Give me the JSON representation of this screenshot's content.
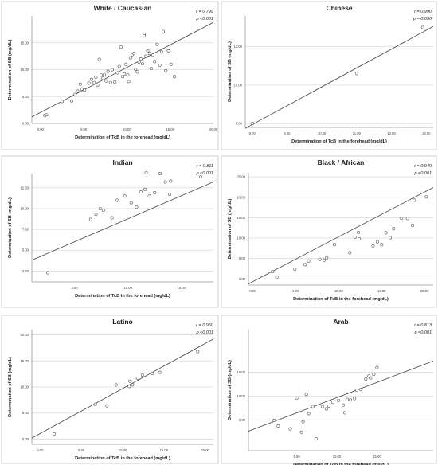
{
  "figure": {
    "panel_border_color": "#cfcfcf",
    "grid_color": "#dcdcdc",
    "axis_color": "#999999",
    "point_stroke": "#555555",
    "line_color": "#444444"
  },
  "chart_data": [
    {
      "type": "scatter",
      "title": "White / Caucasian",
      "xlabel": "Determination of TcB in the forehead (mg/dL)",
      "ylabel": "Determination of SB (mg/dL)",
      "annotation_r": "r = 0.799",
      "annotation_p": "p <0.001",
      "xlim": [
        -1,
        20
      ],
      "ylim": [
        0,
        20
      ],
      "xticks": [
        0,
        5,
        10,
        15,
        20
      ],
      "xtick_labels": [
        "0.00",
        "5.00",
        "10.00",
        "15.00",
        "20.00"
      ],
      "yticks": [
        0,
        5,
        10,
        15
      ],
      "ytick_labels": [
        "0.00",
        "5.00",
        "10.00",
        "15.00"
      ],
      "fit": {
        "x": [
          -1,
          20
        ],
        "y": [
          1.2,
          18.8
        ]
      },
      "points": [
        [
          0.5,
          1.5
        ],
        [
          0.7,
          1.6
        ],
        [
          2.5,
          4.1
        ],
        [
          3.6,
          4.2
        ],
        [
          4.0,
          5.4
        ],
        [
          4.3,
          6.0
        ],
        [
          4.6,
          7.3
        ],
        [
          4.8,
          6.4
        ],
        [
          5.1,
          6.2
        ],
        [
          5.6,
          7.5
        ],
        [
          5.9,
          8.2
        ],
        [
          6.2,
          7.6
        ],
        [
          6.4,
          8.6
        ],
        [
          6.6,
          7.1
        ],
        [
          6.8,
          11.9
        ],
        [
          7.0,
          9.0
        ],
        [
          7.2,
          8.4
        ],
        [
          7.4,
          9.1
        ],
        [
          7.6,
          7.9
        ],
        [
          7.8,
          9.7
        ],
        [
          8.1,
          7.6
        ],
        [
          8.3,
          10.0
        ],
        [
          8.6,
          7.7
        ],
        [
          8.9,
          9.4
        ],
        [
          9.1,
          10.6
        ],
        [
          9.3,
          14.2
        ],
        [
          9.5,
          8.7
        ],
        [
          9.7,
          9.2
        ],
        [
          9.9,
          11.0
        ],
        [
          10.1,
          9.0
        ],
        [
          10.2,
          7.8
        ],
        [
          10.4,
          12.2
        ],
        [
          10.6,
          12.8
        ],
        [
          10.8,
          13.0
        ],
        [
          11.0,
          10.1
        ],
        [
          11.2,
          9.6
        ],
        [
          11.4,
          11.4
        ],
        [
          11.6,
          12.0
        ],
        [
          11.8,
          11.1
        ],
        [
          12.0,
          16.6
        ],
        [
          12.2,
          12.5
        ],
        [
          12.4,
          13.5
        ],
        [
          12.6,
          13.0
        ],
        [
          12.8,
          10.2
        ],
        [
          13.0,
          12.7
        ],
        [
          13.2,
          11.5
        ],
        [
          13.5,
          14.7
        ],
        [
          13.8,
          10.8
        ],
        [
          14.0,
          13.3
        ],
        [
          14.2,
          17.1
        ],
        [
          14.5,
          9.8
        ],
        [
          14.8,
          13.5
        ],
        [
          15.1,
          11.0
        ],
        [
          15.5,
          8.7
        ],
        [
          12.0,
          16.3
        ]
      ]
    },
    {
      "type": "scatter",
      "title": "Chinese",
      "xlabel": "Determination of TcB in the forehead (mg/dL)",
      "ylabel": "Determination of SB (mg/dL)",
      "annotation_r": "r = 0.990",
      "annotation_p": "p = 0.090",
      "xlim": [
        7.8,
        13.2
      ],
      "ylim": [
        7.8,
        13.6
      ],
      "xticks": [
        8,
        9,
        10,
        11,
        12,
        13
      ],
      "xtick_labels": [
        "8.00",
        "9.00",
        "10.00",
        "11.00",
        "12.00",
        "13.00"
      ],
      "yticks": [
        8,
        10,
        12
      ],
      "ytick_labels": [
        "8.00",
        "10.00",
        "12.00"
      ],
      "fit": {
        "x": [
          7.8,
          13.2
        ],
        "y": [
          7.75,
          13.05
        ]
      },
      "points": [
        [
          8.0,
          8.0
        ],
        [
          11.0,
          10.6
        ],
        [
          12.9,
          13.0
        ]
      ]
    },
    {
      "type": "scatter",
      "title": "Indian",
      "xlabel": "Determination of TcB in the forehead (mg/dL)",
      "ylabel": "Determination of SB (mg/dL)",
      "annotation_r": "r = 0.811",
      "annotation_p": "p <0.001",
      "xlim": [
        1,
        18
      ],
      "ylim": [
        1.2,
        14.2
      ],
      "xticks": [
        5,
        10,
        15
      ],
      "xtick_labels": [
        "5.00",
        "10.00",
        "15.00"
      ],
      "yticks": [
        2.5,
        5,
        7.5,
        10,
        12.5
      ],
      "ytick_labels": [
        "2.50",
        "5.00",
        "7.50",
        "10.00",
        "12.50"
      ],
      "fit": {
        "x": [
          1,
          18
        ],
        "y": [
          3.8,
          13.2
        ]
      },
      "points": [
        [
          2.5,
          2.3
        ],
        [
          6.5,
          8.7
        ],
        [
          7.0,
          9.3
        ],
        [
          7.4,
          10.0
        ],
        [
          7.7,
          9.8
        ],
        [
          8.5,
          8.9
        ],
        [
          9.0,
          11.0
        ],
        [
          9.7,
          11.5
        ],
        [
          10.3,
          10.7
        ],
        [
          10.8,
          10.2
        ],
        [
          11.2,
          12.0
        ],
        [
          11.7,
          14.3
        ],
        [
          11.6,
          12.3
        ],
        [
          12.0,
          11.5
        ],
        [
          12.5,
          11.9
        ],
        [
          13.0,
          14.2
        ],
        [
          13.5,
          13.2
        ],
        [
          13.9,
          11.7
        ],
        [
          14.0,
          13.3
        ],
        [
          16.8,
          13.8
        ]
      ]
    },
    {
      "type": "scatter",
      "title": "Black / African",
      "xlabel": "Determination of TcB in the forehead (mg/dL)",
      "ylabel": "Determination of SB (mg/dL)",
      "annotation_r": "r = 0.940",
      "annotation_p": "p <0.001",
      "xlim": [
        -0.5,
        21
      ],
      "ylim": [
        -1.5,
        26
      ],
      "xticks": [
        0,
        5,
        10,
        15,
        20
      ],
      "xtick_labels": [
        "0.00",
        "5.00",
        "10.00",
        "15.00",
        "20.00"
      ],
      "yticks": [
        0,
        5,
        10,
        15,
        20,
        25
      ],
      "ytick_labels": [
        "0.00",
        "5.00",
        "10.00",
        "15.00",
        "20.00",
        "25.00"
      ],
      "fit": {
        "x": [
          -0.5,
          21
        ],
        "y": [
          -1.2,
          22.4
        ]
      },
      "points": [
        [
          2.3,
          1.8
        ],
        [
          2.8,
          0.4
        ],
        [
          4.9,
          2.4
        ],
        [
          6.1,
          3.5
        ],
        [
          6.5,
          4.4
        ],
        [
          7.8,
          4.8
        ],
        [
          8.3,
          4.6
        ],
        [
          8.6,
          5.2
        ],
        [
          9.5,
          8.4
        ],
        [
          11.3,
          6.4
        ],
        [
          11.9,
          10.2
        ],
        [
          12.3,
          11.4
        ],
        [
          12.4,
          9.8
        ],
        [
          14.0,
          8.1
        ],
        [
          14.5,
          9.1
        ],
        [
          15.0,
          8.4
        ],
        [
          15.5,
          11.3
        ],
        [
          16.0,
          10.1
        ],
        [
          16.4,
          12.3
        ],
        [
          17.3,
          14.9
        ],
        [
          18.0,
          14.8
        ],
        [
          18.6,
          13.1
        ],
        [
          18.8,
          19.3
        ],
        [
          20.2,
          20.1
        ]
      ]
    },
    {
      "type": "scatter",
      "title": "Latino",
      "xlabel": "Determination of TcB in the forehead (mg/dL)",
      "ylabel": "Determination of SB (mg/dL)",
      "annotation_r": "r = 0.960",
      "annotation_p": "p <0.001",
      "xlim": [
        -1,
        21
      ],
      "ylim": [
        -1,
        21
      ],
      "xticks": [
        0,
        5,
        10,
        15,
        20
      ],
      "xtick_labels": [
        "0.00",
        "5.00",
        "10.00",
        "15.00",
        "20.00"
      ],
      "yticks": [
        0,
        5,
        10,
        15,
        20
      ],
      "ytick_labels": [
        "0.00",
        "5.00",
        "10.00",
        "15.00",
        "20.00"
      ],
      "fit": {
        "x": [
          -1,
          21
        ],
        "y": [
          0.2,
          19.2
        ]
      },
      "points": [
        [
          1.7,
          1.0
        ],
        [
          6.7,
          6.7
        ],
        [
          8.1,
          6.4
        ],
        [
          9.2,
          10.4
        ],
        [
          10.8,
          10.1
        ],
        [
          10.9,
          11.1
        ],
        [
          11.2,
          10.4
        ],
        [
          11.8,
          11.7
        ],
        [
          12.4,
          12.3
        ],
        [
          13.6,
          12.6
        ],
        [
          14.5,
          12.8
        ],
        [
          19.1,
          16.8
        ]
      ]
    },
    {
      "type": "scatter",
      "title": "Arab",
      "xlabel": "Determination of TcB in the forehead (mg/dL)",
      "ylabel": "Determination of SB (mg/dL)",
      "annotation_r": "r = 0.813",
      "annotation_p": "p <0.001",
      "xlim": [
        -1,
        22
      ],
      "ylim": [
        -1.5,
        24
      ],
      "xticks": [
        5,
        10,
        15
      ],
      "xtick_labels": [
        "5.00",
        "10.00",
        "15.00"
      ],
      "yticks": [
        5,
        10,
        15
      ],
      "ytick_labels": [
        "5.00",
        "10.00",
        "15.00"
      ],
      "fit": {
        "x": [
          -1,
          22
        ],
        "y": [
          2.6,
          17.4
        ]
      },
      "points": [
        [
          2.2,
          4.9
        ],
        [
          2.7,
          3.7
        ],
        [
          4.2,
          3.1
        ],
        [
          5.6,
          2.4
        ],
        [
          5.8,
          4.6
        ],
        [
          6.5,
          6.3
        ],
        [
          7.0,
          7.8
        ],
        [
          8.2,
          7.8
        ],
        [
          8.7,
          7.3
        ],
        [
          9.0,
          7.9
        ],
        [
          9.5,
          8.7
        ],
        [
          10.2,
          9.1
        ],
        [
          10.8,
          8.1
        ],
        [
          11.3,
          9.3
        ],
        [
          11.7,
          9.2
        ],
        [
          12.2,
          9.5
        ],
        [
          12.5,
          11.2
        ],
        [
          13.0,
          11.4
        ],
        [
          13.6,
          13.6
        ],
        [
          14.0,
          14.2
        ],
        [
          14.2,
          13.8
        ],
        [
          14.6,
          14.6
        ],
        [
          15.0,
          16.0
        ],
        [
          7.4,
          1.0
        ],
        [
          11.0,
          6.5
        ],
        [
          5.0,
          9.6
        ],
        [
          6.2,
          10.4
        ]
      ]
    }
  ]
}
